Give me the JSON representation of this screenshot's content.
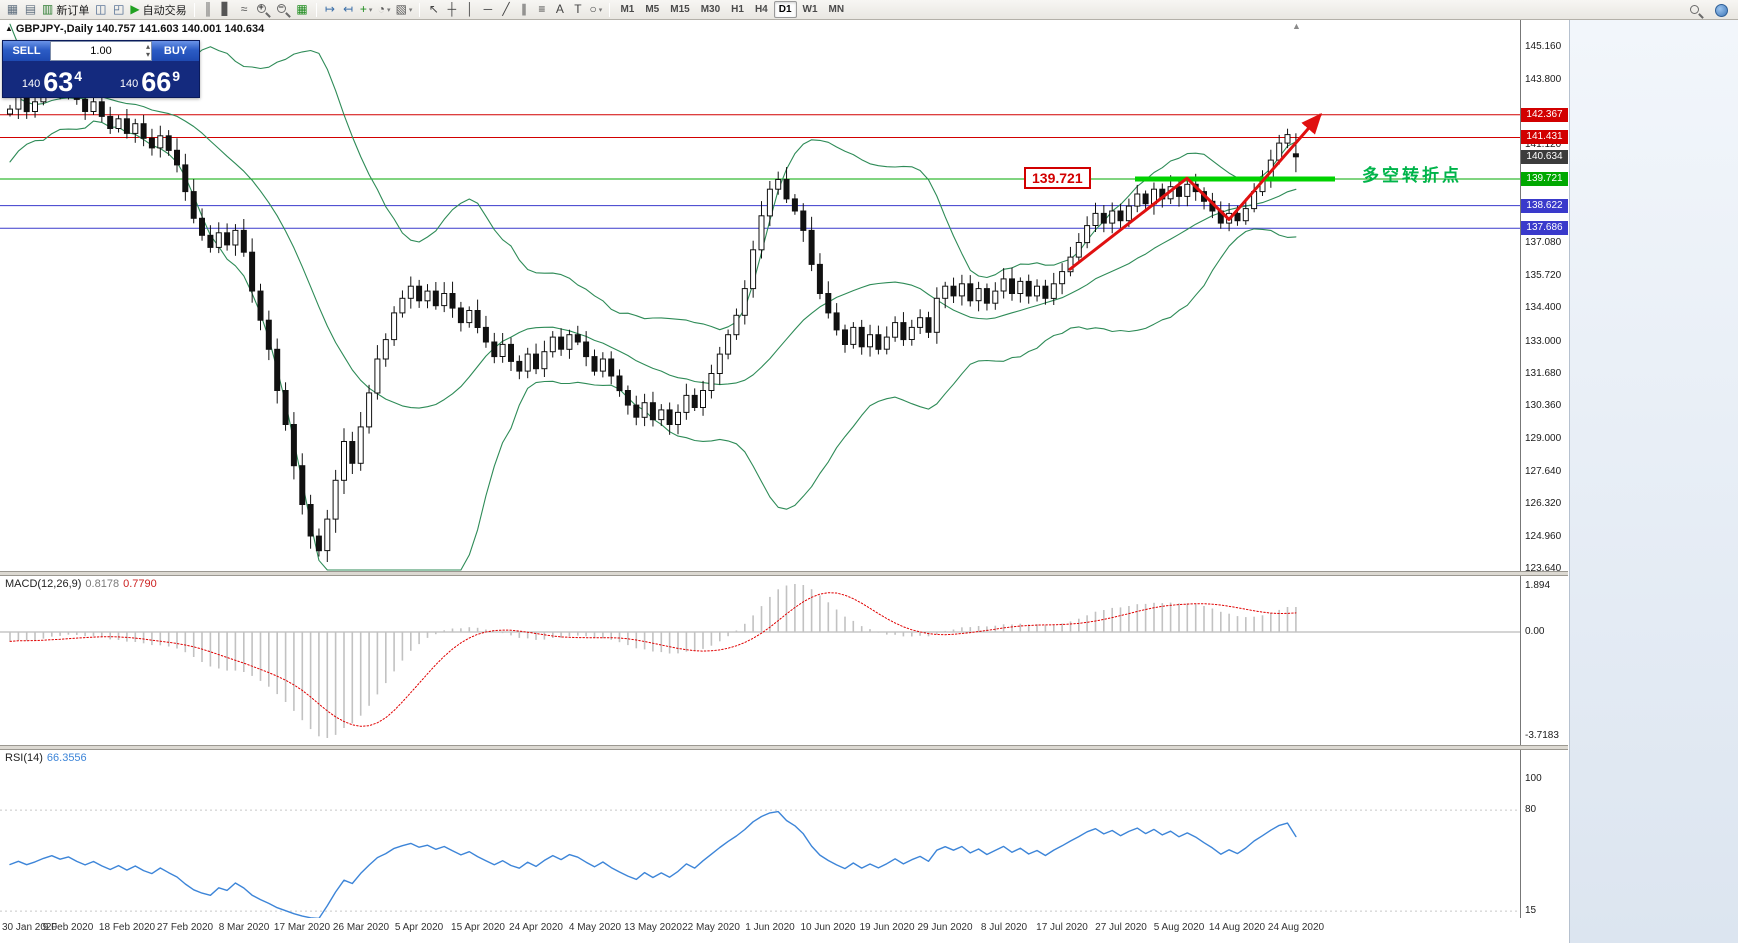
{
  "toolbar": {
    "items": [
      {
        "name": "chart-window-icon",
        "glyph": "▦",
        "color": "#5f6f7f"
      },
      {
        "name": "profiles-icon",
        "glyph": "▤",
        "color": "#5f6f7f"
      },
      {
        "name": "new-order-button",
        "glyph": "▥",
        "color": "#2e7d32",
        "label": "新订单"
      },
      {
        "name": "market-watch-icon",
        "glyph": "◫",
        "color": "#46648c"
      },
      {
        "name": "navigator-icon",
        "glyph": "◰",
        "color": "#46648c"
      },
      {
        "name": "auto-trading-button",
        "glyph": "▶",
        "color": "#21a121",
        "label": "自动交易"
      },
      {
        "sep": true
      },
      {
        "name": "bars-chart-icon",
        "glyph": "║",
        "color": "#555555"
      },
      {
        "name": "candlestick-chart-icon",
        "glyph": "▋",
        "color": "#555555"
      },
      {
        "name": "line-chart-icon",
        "glyph": "≈",
        "color": "#555555"
      },
      {
        "name": "zoom-in-icon",
        "type": "lens",
        "sign": "+"
      },
      {
        "name": "zoom-out-icon",
        "type": "lens",
        "sign": "−"
      },
      {
        "name": "tile-windows-icon",
        "glyph": "▦",
        "color": "#1f8d1f"
      },
      {
        "sep": true
      },
      {
        "name": "auto-scroll-icon",
        "glyph": "↦",
        "color": "#3a6ea8"
      },
      {
        "name": "chart-shift-icon",
        "glyph": "↤",
        "color": "#3a6ea8"
      },
      {
        "name": "indicators-button",
        "glyph": "+",
        "color": "#1f8d1f",
        "caret": true
      },
      {
        "name": "periods-button",
        "glyph": "◔",
        "color": "#555555",
        "caret": true
      },
      {
        "name": "templates-button",
        "glyph": "▧",
        "color": "#555555",
        "caret": true
      },
      {
        "sep": true
      },
      {
        "name": "cursor-icon",
        "glyph": "↖",
        "color": "#444444"
      },
      {
        "name": "crosshair-icon",
        "glyph": "┼",
        "color": "#444444"
      },
      {
        "name": "vertical-line-icon",
        "glyph": "│",
        "color": "#444444"
      },
      {
        "name": "horizontal-line-icon",
        "glyph": "─",
        "color": "#444444"
      },
      {
        "name": "trendline-icon",
        "glyph": "╱",
        "color": "#444444"
      },
      {
        "name": "channel-icon",
        "glyph": "∥",
        "color": "#444444"
      },
      {
        "name": "fibonacci-icon",
        "glyph": "≡",
        "color": "#444444"
      },
      {
        "name": "text-icon",
        "glyph": "A",
        "color": "#444444"
      },
      {
        "name": "label-icon",
        "glyph": "T",
        "color": "#444444"
      },
      {
        "name": "shapes-button",
        "glyph": "○",
        "color": "#444444",
        "caret": true
      },
      {
        "sep": true
      },
      {
        "name": "tf-m1",
        "type": "tf",
        "label": "M1"
      },
      {
        "name": "tf-m5",
        "type": "tf",
        "label": "M5"
      },
      {
        "name": "tf-m15",
        "type": "tf",
        "label": "M15"
      },
      {
        "name": "tf-m30",
        "type": "tf",
        "label": "M30"
      },
      {
        "name": "tf-h1",
        "type": "tf",
        "label": "H1"
      },
      {
        "name": "tf-h4",
        "type": "tf",
        "label": "H4"
      },
      {
        "name": "tf-d1",
        "type": "tf",
        "label": "D1",
        "active": true
      },
      {
        "name": "tf-w1",
        "type": "tf",
        "label": "W1"
      },
      {
        "name": "tf-mn",
        "type": "tf",
        "label": "MN"
      }
    ],
    "right_items": [
      {
        "name": "search-icon",
        "type": "lens",
        "sign": ""
      },
      {
        "name": "community-icon",
        "type": "circle"
      }
    ]
  },
  "trade": {
    "sell_label": "SELL",
    "buy_label": "BUY",
    "volume": "1.00",
    "sell_price": {
      "prefix": "140",
      "big": "63",
      "sup": "4"
    },
    "buy_price": {
      "prefix": "140",
      "big": "66",
      "sup": "9"
    }
  },
  "chart": {
    "title_marker": "▲",
    "title": "GBPJPY-,Daily 140.757 141.603 140.001 140.634",
    "turning_label": "139.721",
    "turning_text": "多空转折点",
    "shift_marker": "▲",
    "price_ticks": [
      {
        "label": "145.160",
        "price": 145.16
      },
      {
        "label": "143.800",
        "price": 143.8
      },
      {
        "label": "141.120",
        "price": 141.12
      },
      {
        "label": "137.080",
        "price": 137.08
      },
      {
        "label": "135.720",
        "price": 135.72
      },
      {
        "label": "134.400",
        "price": 134.4
      },
      {
        "label": "133.000",
        "price": 133.0
      },
      {
        "label": "131.680",
        "price": 131.68
      },
      {
        "label": "130.360",
        "price": 130.36
      },
      {
        "label": "129.000",
        "price": 129.0
      },
      {
        "label": "127.640",
        "price": 127.64
      },
      {
        "label": "126.320",
        "price": 126.32
      },
      {
        "label": "124.960",
        "price": 124.96
      },
      {
        "label": "123.640",
        "price": 123.64
      }
    ],
    "line_labels": [
      {
        "label": "142.367",
        "price": 142.367,
        "color": "#d20000"
      },
      {
        "label": "141.431",
        "price": 141.431,
        "color": "#d20000"
      },
      {
        "label": "140.634",
        "price": 140.634,
        "color": "#3c3c3c"
      },
      {
        "label": "139.721",
        "price": 139.721,
        "color": "#00a800"
      },
      {
        "label": "138.622",
        "price": 138.622,
        "color": "#3a3acb"
      },
      {
        "label": "137.686",
        "price": 137.686,
        "color": "#3a3acb"
      }
    ]
  },
  "macd": {
    "name": "MACD(12,26,9)",
    "value1": "0.8178",
    "value2": "0.7790",
    "axis": [
      "1.894",
      "0.00",
      "-3.7183"
    ]
  },
  "rsi": {
    "name": "RSI(14)",
    "value": "66.3556",
    "axis": [
      "100",
      "80",
      "15"
    ]
  },
  "dates": [
    "30 Jan 2020",
    "9 Feb 2020",
    "18 Feb 2020",
    "27 Feb 2020",
    "8 Mar 2020",
    "17 Mar 2020",
    "26 Mar 2020",
    "5 Apr 2020",
    "15 Apr 2020",
    "24 Apr 2020",
    "4 May 2020",
    "13 May 2020",
    "22 May 2020",
    "1 Jun 2020",
    "10 Jun 2020",
    "19 Jun 2020",
    "29 Jun 2020",
    "8 Jul 2020",
    "17 Jul 2020",
    "27 Jul 2020",
    "5 Aug 2020",
    "14 Aug 2020",
    "24 Aug 2020"
  ],
  "chart_data": {
    "type": "candlestick",
    "symbol": "GBPJPY-",
    "period": "Daily",
    "title": "GBPJPY-,Daily",
    "ylim": [
      123.64,
      145.16
    ],
    "last_candle": {
      "open": 140.757,
      "high": 141.603,
      "low": 140.001,
      "close": 140.634
    },
    "bollinger_color": "#2e8b57",
    "bollinger": {
      "period": 20,
      "deviation": 2
    },
    "warmup_closes": [
      144.5,
      147.2,
      146.0,
      144.8,
      142.6,
      141.2,
      141.8,
      142.9,
      143.6,
      142.2,
      141.5,
      142.6,
      143.8,
      144.2,
      143.2,
      142.6,
      143.2,
      143.8,
      143.0,
      142.4
    ],
    "close_series": [
      142.6,
      143.1,
      142.5,
      142.9,
      143.4,
      143.8,
      143.3,
      143.6,
      143.0,
      142.5,
      142.9,
      142.3,
      141.8,
      142.2,
      141.6,
      142.0,
      141.4,
      141.0,
      141.5,
      140.9,
      140.3,
      139.2,
      138.1,
      137.4,
      136.9,
      137.5,
      137.0,
      137.6,
      136.7,
      135.1,
      133.9,
      132.7,
      131.0,
      129.6,
      127.9,
      126.3,
      125.0,
      124.4,
      125.7,
      127.3,
      128.9,
      128.0,
      129.5,
      130.9,
      132.3,
      133.1,
      134.2,
      134.8,
      135.3,
      134.7,
      135.1,
      134.5,
      135.0,
      134.4,
      133.8,
      134.3,
      133.6,
      133.0,
      132.4,
      132.9,
      132.2,
      131.8,
      132.5,
      131.9,
      132.6,
      133.2,
      132.7,
      133.3,
      133.0,
      132.4,
      131.8,
      132.3,
      131.6,
      131.0,
      130.4,
      129.9,
      130.5,
      129.8,
      130.2,
      129.6,
      130.1,
      130.8,
      130.3,
      131.0,
      131.7,
      132.5,
      133.3,
      134.1,
      135.2,
      136.8,
      138.2,
      139.3,
      139.7,
      138.9,
      138.4,
      137.6,
      136.2,
      135.0,
      134.2,
      133.5,
      132.9,
      133.6,
      132.8,
      133.3,
      132.7,
      133.2,
      133.8,
      133.1,
      133.6,
      134.0,
      133.4,
      134.8,
      135.3,
      134.9,
      135.4,
      134.7,
      135.2,
      134.6,
      135.1,
      135.6,
      135.0,
      135.5,
      134.9,
      135.3,
      134.8,
      135.4,
      135.9,
      136.5,
      137.1,
      137.8,
      138.3,
      137.9,
      138.4,
      138.0,
      138.6,
      139.1,
      138.7,
      139.3,
      138.9,
      139.4,
      139.0,
      139.5,
      139.2,
      138.8,
      138.4,
      137.9,
      138.3,
      138.0,
      138.5,
      139.2,
      139.8,
      140.5,
      141.2,
      141.55,
      140.634
    ],
    "overlay_lines": [
      {
        "price": 142.367,
        "color": "#d20000",
        "width": 1
      },
      {
        "price": 141.431,
        "color": "#d20000",
        "width": 1
      },
      {
        "price": 139.721,
        "color": "#00a800",
        "width": 1
      },
      {
        "price": 138.622,
        "color": "#3a3acb",
        "width": 1
      },
      {
        "price": 137.686,
        "color": "#3a3acb",
        "width": 1
      }
    ],
    "support_segment": {
      "price": 139.721,
      "color": "#00d200",
      "note": "thick horizontal support/resistance segment over Aug candles"
    },
    "trend_arrow": {
      "color": "#e01010",
      "points_x_price": [
        [
          1070,
          136.0
        ],
        [
          1187,
          139.75
        ],
        [
          1229,
          138.05
        ],
        [
          1320,
          142.35
        ]
      ]
    },
    "indicators": [
      {
        "name": "MACD",
        "params": [
          12,
          26,
          9
        ],
        "values": [
          0.8178,
          0.779
        ],
        "axis_range": [
          -3.7183,
          1.894
        ]
      },
      {
        "name": "RSI",
        "params": [
          14
        ],
        "value": 66.3556,
        "levels": [
          80,
          15
        ]
      }
    ]
  }
}
